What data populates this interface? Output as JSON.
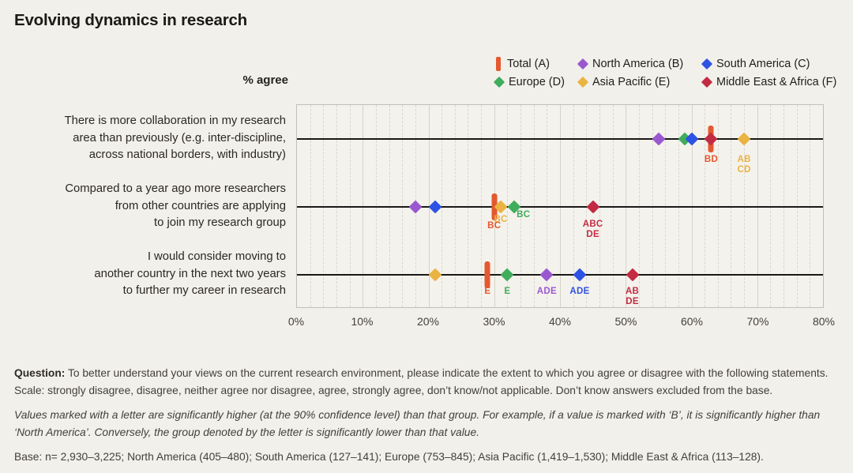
{
  "page": {
    "title": "Evolving dynamics in research",
    "axis_title": "% agree"
  },
  "colors": {
    "background": "#f2f0ea",
    "total": "#e4582f",
    "north_america": "#9a58d0",
    "south_america": "#2e52e4",
    "europe": "#3fad5c",
    "asia_pacific": "#eab342",
    "middle_east_africa": "#c32b43"
  },
  "legend": {
    "position": "top-right",
    "items": [
      {
        "key": "A",
        "label": "Total (A)",
        "color": "#e4582f",
        "marker": "bar"
      },
      {
        "key": "B",
        "label": "North America (B)",
        "color": "#9a58d0",
        "marker": "diamond"
      },
      {
        "key": "C",
        "label": "South America (C)",
        "color": "#2e52e4",
        "marker": "diamond"
      },
      {
        "key": "D",
        "label": "Europe (D)",
        "color": "#3fad5c",
        "marker": "diamond"
      },
      {
        "key": "E",
        "label": "Asia Pacific (E)",
        "color": "#eab342",
        "marker": "diamond"
      },
      {
        "key": "F",
        "label": "Middle East & Africa (F)",
        "color": "#c32b43",
        "marker": "diamond"
      }
    ]
  },
  "chart_data": {
    "type": "scatter",
    "title": "Evolving dynamics in research",
    "xlabel": "% agree",
    "xlim": [
      0,
      80
    ],
    "major_step": 10,
    "minor_step": 2,
    "grid": true,
    "x_tick_labels": [
      "0%",
      "10%",
      "20%",
      "30%",
      "40%",
      "50%",
      "60%",
      "70%",
      "80%"
    ],
    "rows": [
      {
        "statement_lines": [
          "There is more collaboration in my research",
          "area than previously (e.g. inter-discipline,",
          "across national borders, with industry)"
        ],
        "points": [
          {
            "series": "A",
            "value": 63,
            "sig": "BD",
            "sig_dy": 20
          },
          {
            "series": "B",
            "value": 55
          },
          {
            "series": "D",
            "value": 59
          },
          {
            "series": "C",
            "value": 60
          },
          {
            "series": "E",
            "value": 68,
            "sig": "AB CD",
            "sig_dy": 20
          },
          {
            "series": "F",
            "value": 63
          }
        ]
      },
      {
        "statement_lines": [
          "Compared to a year ago more researchers",
          "from other countries are applying",
          "to join my research group"
        ],
        "points": [
          {
            "series": "A",
            "value": 30,
            "sig": "BC",
            "sig_dy": 18
          },
          {
            "series": "B",
            "value": 18
          },
          {
            "series": "C",
            "value": 21
          },
          {
            "series": "E",
            "value": 31,
            "sig": "BC",
            "sig_dy": 10
          },
          {
            "series": "D",
            "value": 33,
            "sig": "BC",
            "sig_dx": 12,
            "sig_dy": 4
          },
          {
            "series": "F",
            "value": 45,
            "sig": "ABC DE",
            "sig_dy": 16
          }
        ]
      },
      {
        "statement_lines": [
          "I would consider moving to",
          "another country in the next two years",
          "to further my career in research"
        ],
        "points": [
          {
            "series": "E",
            "value": 21
          },
          {
            "series": "A",
            "value": 29,
            "sig": "E",
            "sig_dy": 15
          },
          {
            "series": "D",
            "value": 32,
            "sig": "E",
            "sig_dy": 15
          },
          {
            "series": "B",
            "value": 38,
            "sig": "ADE",
            "sig_dy": 15
          },
          {
            "series": "C",
            "value": 43,
            "sig": "ADE",
            "sig_dy": 15
          },
          {
            "series": "F",
            "value": 51,
            "sig": "AB DE",
            "sig_dy": 15
          }
        ]
      }
    ]
  },
  "footer": {
    "question_label": "Question:",
    "question_text": " To better understand your views on the current research environment, please indicate the extent to which you agree or disagree with the following statements. Scale: strongly disagree, disagree, neither agree nor disagree, agree, strongly agree, don’t know/not applicable. Don’t know answers excluded from the base.",
    "note_italic": "Values marked with a letter are significantly higher (at the 90% confidence level) than that group. For example, if a value is marked with ‘B’, it is significantly higher than ‘North America’. Conversely, the group denoted by the letter is significantly lower than that value.",
    "base_text": "Base: n= 2,930–3,225; North America (405–480); South America (127–141); Europe (753–845); Asia Pacific (1,419–1,530); Middle East & Africa (113–128)."
  }
}
